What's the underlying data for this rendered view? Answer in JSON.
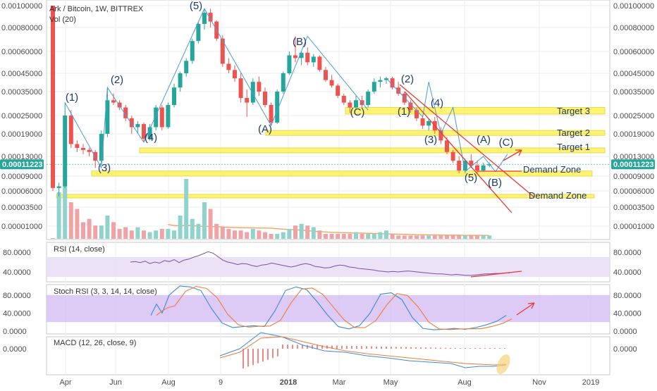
{
  "chart_data": {
    "type": "candlestick",
    "title": "Ark / Bitcoin, 1W, BITTREX",
    "volume_legend": "Vol (20)",
    "price_scale": "log",
    "colors": {
      "up": "#26a69a",
      "down": "#ef5350",
      "up_light": "#8fd3cd",
      "down_light": "#f0a3a5",
      "ma": "#f2a35a",
      "annotation": "#4a9bd8",
      "zone": "#fff04a",
      "trend": "#e53935"
    },
    "price_axis_ticks": [
      "0.00100000",
      "0.00080000",
      "0.00060000",
      "0.00045000",
      "0.00035000",
      "0.00025000",
      "0.00019000",
      "0.00013000",
      "0.00009000",
      "0.00006000",
      "0.00003500",
      "0.00001000"
    ],
    "current_price": "0.00011223",
    "x_labels": [
      "Apr",
      "Jun",
      "Aug",
      "9",
      "2018",
      "Mar",
      "May",
      "Aug",
      "Nov",
      "2019"
    ],
    "weekly_ohlc": [
      [
        0.001,
        0.001,
        6e-05,
        6.5e-05
      ],
      [
        6.5e-05,
        7.5e-05,
        5e-05,
        6.8e-05
      ],
      [
        6.8e-05,
        0.0003,
        6.5e-05,
        0.00025
      ],
      [
        0.00025,
        0.00027,
        0.00015,
        0.00016
      ],
      [
        0.00016,
        0.00017,
        0.00014,
        0.00015
      ],
      [
        0.00015,
        0.00016,
        0.000135,
        0.000145
      ],
      [
        0.000145,
        0.00015,
        0.00013,
        0.00014
      ],
      [
        0.00014,
        0.000145,
        0.000105,
        0.00012
      ],
      [
        0.00012,
        0.0002,
        0.000115,
        0.00019
      ],
      [
        0.00019,
        0.00037,
        0.00018,
        0.00031
      ],
      [
        0.00031,
        0.00034,
        0.00029,
        0.0003
      ],
      [
        0.0003,
        0.00031,
        0.00027,
        0.00028
      ],
      [
        0.00028,
        0.00029,
        0.00023,
        0.00024
      ],
      [
        0.00024,
        0.00025,
        0.00019,
        0.00021
      ],
      [
        0.00021,
        0.00023,
        0.00019,
        0.00022
      ],
      [
        0.00022,
        0.000225,
        0.000165,
        0.000175
      ],
      [
        0.000175,
        0.00022,
        0.00017,
        0.00021
      ],
      [
        0.00021,
        0.00029,
        0.0002,
        0.00028
      ],
      [
        0.00028,
        0.00029,
        0.0002,
        0.00021
      ],
      [
        0.00021,
        0.0003,
        0.000205,
        0.00029
      ],
      [
        0.00029,
        0.00039,
        0.00028,
        0.00037
      ],
      [
        0.00037,
        0.00046,
        0.00035,
        0.00045
      ],
      [
        0.00045,
        0.00055,
        0.00043,
        0.00053
      ],
      [
        0.00053,
        0.0007,
        0.00051,
        0.00068
      ],
      [
        0.00068,
        0.00085,
        0.00066,
        0.00083
      ],
      [
        0.00083,
        0.00096,
        0.00078,
        0.00093
      ],
      [
        0.00093,
        0.00097,
        0.0008,
        0.00085
      ],
      [
        0.00085,
        0.00086,
        0.00068,
        0.0007
      ],
      [
        0.0007,
        0.00073,
        0.00049,
        0.00051
      ],
      [
        0.00051,
        0.00055,
        0.00045,
        0.00047
      ],
      [
        0.00047,
        0.0005,
        0.0004,
        0.00042
      ],
      [
        0.00042,
        0.00045,
        0.0003,
        0.00032
      ],
      [
        0.00032,
        0.00036,
        0.000245,
        0.0003
      ],
      [
        0.0003,
        0.00042,
        0.00029,
        0.0004
      ],
      [
        0.0004,
        0.00043,
        0.00033,
        0.00035
      ],
      [
        0.00035,
        0.00037,
        0.00028,
        0.00029
      ],
      [
        0.00029,
        0.0003,
        0.000215,
        0.000225
      ],
      [
        0.000225,
        0.00036,
        0.00022,
        0.00035
      ],
      [
        0.00035,
        0.00046,
        0.00034,
        0.00045
      ],
      [
        0.00045,
        0.0006,
        0.00044,
        0.00057
      ],
      [
        0.00057,
        0.00072,
        0.00052,
        0.00055
      ],
      [
        0.00055,
        0.0006,
        0.0005,
        0.00059
      ],
      [
        0.00059,
        0.00063,
        0.0005,
        0.00052
      ],
      [
        0.00052,
        0.00058,
        0.00049,
        0.00056
      ],
      [
        0.00056,
        0.00057,
        0.00046,
        0.00047
      ],
      [
        0.00047,
        0.00049,
        0.0004,
        0.00041
      ],
      [
        0.00041,
        0.00044,
        0.00037,
        0.00038
      ],
      [
        0.00038,
        0.00039,
        0.00032,
        0.00033
      ],
      [
        0.00033,
        0.00034,
        0.00029,
        0.0003
      ],
      [
        0.0003,
        0.00031,
        0.00026,
        0.00028
      ],
      [
        0.00028,
        0.00033,
        0.00027,
        0.00031
      ],
      [
        0.00031,
        0.00033,
        0.00028,
        0.00029
      ],
      [
        0.00029,
        0.00036,
        0.00028,
        0.00035
      ],
      [
        0.00035,
        0.00042,
        0.00034,
        0.0004
      ],
      [
        0.0004,
        0.00043,
        0.00037,
        0.00041
      ],
      [
        0.00041,
        0.00043,
        0.00039,
        0.00042
      ],
      [
        0.00042,
        0.00043,
        0.00036,
        0.00037
      ],
      [
        0.00037,
        0.0004,
        0.00033,
        0.00034
      ],
      [
        0.00034,
        0.00035,
        0.00029,
        0.0003
      ],
      [
        0.0003,
        0.00031,
        0.00026,
        0.00027
      ],
      [
        0.00027,
        0.00028,
        0.00023,
        0.00024
      ],
      [
        0.00024,
        0.00025,
        0.000205,
        0.000215
      ],
      [
        0.000215,
        0.00024,
        0.0002,
        0.00023
      ],
      [
        0.00023,
        0.000245,
        0.00019,
        0.0002
      ],
      [
        0.0002,
        0.00021,
        0.00016,
        0.00017
      ],
      [
        0.00017,
        0.00018,
        0.000135,
        0.00014
      ],
      [
        0.00014,
        0.000145,
        0.000115,
        0.00012
      ],
      [
        0.00012,
        0.00013,
        9.5e-05,
        0.0001
      ],
      [
        0.0001,
        0.000125,
        9.5e-05,
        0.00012
      ],
      [
        0.00012,
        0.000135,
        0.000105,
        0.00011
      ],
      [
        0.00011,
        0.00012,
        9.5e-05,
        0.0001
      ],
      [
        0.0001,
        0.000115,
        9.8e-05,
        0.00011
      ],
      [
        0.00011,
        0.000116,
        0.000106,
        0.00011223
      ]
    ],
    "volume": [
      0,
      28,
      32,
      22,
      18,
      10,
      12,
      8,
      8,
      14,
      10,
      6,
      7,
      5,
      7,
      5,
      4,
      5,
      6,
      6,
      5,
      14,
      36,
      12,
      9,
      22,
      18,
      9,
      7,
      6,
      5,
      5,
      4,
      6,
      5,
      4,
      3,
      3,
      4,
      6,
      8,
      9,
      8,
      7,
      5,
      3,
      3,
      3,
      3,
      3,
      4,
      3,
      3,
      3,
      4,
      5,
      3,
      2,
      2,
      2,
      2,
      2,
      2,
      2,
      2,
      2,
      2,
      2,
      2,
      2,
      2,
      2,
      2
    ],
    "moving_average_volume": [
      null,
      null,
      null,
      null,
      null,
      null,
      null,
      null,
      null,
      null,
      null,
      null,
      null,
      null,
      null,
      null,
      null,
      null,
      null,
      8.6,
      8.0,
      7.8,
      8.2,
      7.9,
      7.6,
      7.5,
      7.4,
      7.3,
      7.1,
      6.9,
      6.8,
      6.7,
      6.6,
      6.6,
      6.5,
      6.5,
      6.4,
      6.1,
      5.8,
      5.6,
      5.5,
      5.2,
      4.9,
      4.6,
      4.3,
      4.1,
      3.9,
      3.8,
      3.7,
      3.6,
      3.5,
      3.4,
      3.3,
      3.2,
      3.1,
      3.0,
      2.9,
      2.8,
      2.7,
      2.6,
      2.5,
      2.4,
      2.4,
      2.3,
      2.3,
      2.2,
      2.2,
      2.2,
      2.1,
      2.1,
      2.1,
      2.1,
      2.0
    ],
    "waves": [
      {
        "label": "(1)",
        "value": 0.00036,
        "week": 2
      },
      {
        "label": "(2)",
        "value": 9e-05,
        "week": 8
      },
      {
        "label": "(3)",
        "value": 0.00047,
        "week": 9
      },
      {
        "label": "(4)",
        "value": 0.00014,
        "week": 16
      },
      {
        "label": "(5)",
        "value": 0.00125,
        "week": 25
      },
      {
        "label": "(A)",
        "value": 0.000178,
        "week": 36
      },
      {
        "label": "(B)",
        "value": 0.00068,
        "week": 42
      },
      {
        "label": "(C)",
        "value": 0.000246,
        "week": 52
      },
      {
        "label": "(1)",
        "value": 0.00026,
        "week": 61
      },
      {
        "label": "(2)",
        "value": 0.00044,
        "week": 61
      },
      {
        "label": "(3)",
        "value": 0.000145,
        "week": 64
      },
      {
        "label": "(4)",
        "value": 0.00031,
        "week": 66
      },
      {
        "label": "(5)",
        "value": 6.4e-05,
        "week": 68
      },
      {
        "label": "(A)",
        "value": 0.00015,
        "week": 71
      },
      {
        "label": "(B)",
        "value": 5.5e-05,
        "week": 73
      },
      {
        "label": "(C)",
        "value": 0.000145,
        "week": 75
      }
    ],
    "zones": [
      {
        "label": "Target 3",
        "low": 0.000255,
        "high": 0.00028
      },
      {
        "label": "Target 2",
        "low": 0.000185,
        "high": 0.0002
      },
      {
        "label": "Target 1",
        "low": 0.000138,
        "high": 0.00015
      },
      {
        "label": "Demand Zone",
        "low": 9e-05,
        "high": 9.9e-05
      },
      {
        "label": "Demand Zone",
        "low": 4.75e-05,
        "high": 5.35e-05
      }
    ],
    "rsi": {
      "legend": "RSI (14, close)",
      "ticks": [
        "80.0000",
        "40.0000"
      ],
      "range": [
        20,
        100
      ],
      "band": [
        30,
        70
      ],
      "values": [
        null,
        null,
        null,
        null,
        null,
        null,
        null,
        null,
        null,
        null,
        null,
        null,
        null,
        null,
        null,
        null,
        null,
        60,
        61,
        59,
        62,
        57,
        60,
        58,
        63,
        61,
        65,
        59,
        64,
        66,
        70,
        73,
        77,
        81,
        78,
        71,
        64,
        60,
        58,
        55,
        57,
        56,
        53,
        51,
        54,
        55,
        58,
        56,
        54,
        52,
        50,
        52,
        55,
        57,
        55,
        51,
        50,
        48,
        49,
        52,
        54,
        53,
        50,
        49,
        47,
        46,
        45,
        44,
        42,
        41,
        40,
        41,
        40,
        41,
        42,
        41,
        40,
        39,
        38,
        37,
        36,
        36,
        35,
        34,
        35,
        34,
        33,
        33,
        34,
        35,
        36,
        36,
        37,
        37,
        38,
        38
      ]
    },
    "stoch_rsi": {
      "legend": "Stoch RSI (3, 3, 14, 14, close)",
      "ticks": [
        "80.0000",
        "40.0000",
        "0.0000"
      ],
      "range": [
        0,
        100
      ],
      "band": [
        20,
        80
      ]
    },
    "macd": {
      "legend": "MACD (12, 26, close, 9)",
      "ticks": [
        "0.0000"
      ]
    }
  }
}
